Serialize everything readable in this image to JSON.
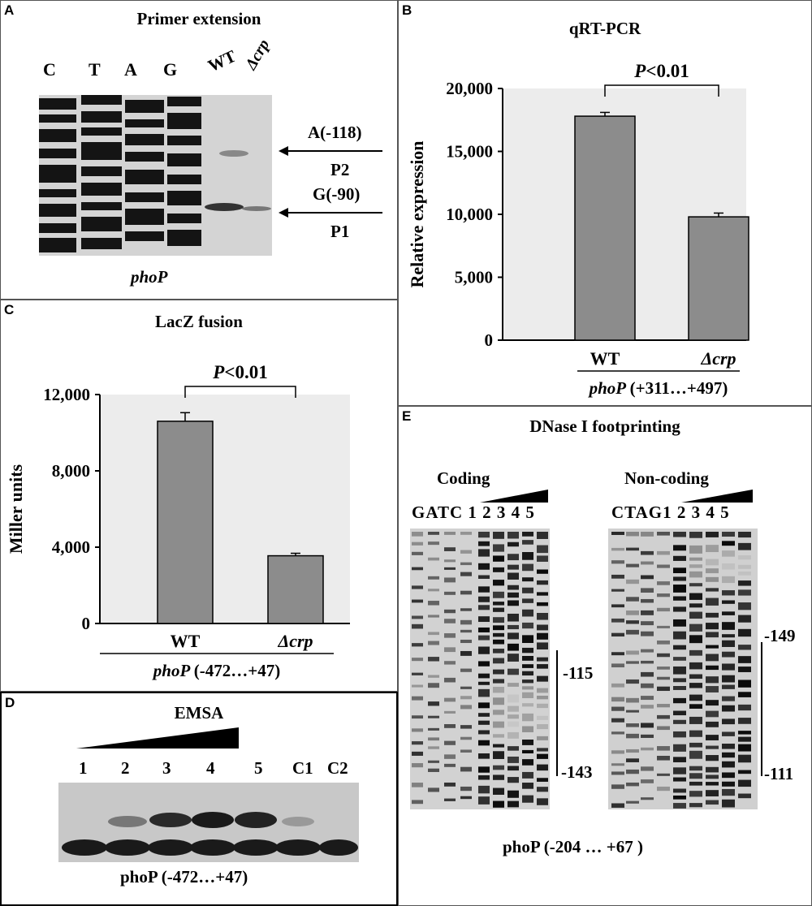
{
  "panelA": {
    "label": "A",
    "title": "Primer extension",
    "lanes": [
      "C",
      "T",
      "A",
      "G",
      "WT",
      "Δcrp"
    ],
    "annotations": [
      {
        "site": "A(-118)",
        "name": "P2"
      },
      {
        "site": "G(-90)",
        "name": "P1"
      }
    ],
    "gene": "phoP"
  },
  "panelB": {
    "label": "B",
    "title": "qRT-PCR",
    "pvalue": "P<0.01",
    "gene_label": "phoP (+311…+497)",
    "chart_data": {
      "type": "bar",
      "title": "qRT-PCR",
      "categories": [
        "WT",
        "Δcrp"
      ],
      "values": [
        17800,
        9800
      ],
      "errors": [
        300,
        300
      ],
      "ylabel": "Relative expression",
      "xlabel": "phoP (+311…+497)",
      "ylim": [
        0,
        20000
      ],
      "yticks": [
        "0",
        "5,000",
        "10,000",
        "15,000",
        "20,000"
      ],
      "annotation": "P<0.01",
      "bar_color": "#8c8c8c"
    }
  },
  "panelC": {
    "label": "C",
    "title": "LacZ fusion",
    "pvalue": "P<0.01",
    "gene_label": "phoP (-472…+47)",
    "chart_data": {
      "type": "bar",
      "title": "LacZ fusion",
      "categories": [
        "WT",
        "Δcrp"
      ],
      "values": [
        10600,
        3550
      ],
      "errors": [
        450,
        130
      ],
      "ylabel": "Miller units",
      "xlabel": "phoP (-472…+47)",
      "ylim": [
        0,
        12000
      ],
      "yticks": [
        "0",
        "4,000",
        "8,000",
        "12,000"
      ],
      "annotation": "P<0.01",
      "bar_color": "#8c8c8c"
    }
  },
  "panelD": {
    "label": "D",
    "title": "EMSA",
    "lanes": [
      "1",
      "2",
      "3",
      "4",
      "5",
      "C1",
      "C2"
    ],
    "gene_label": "phoP (-472…+47)"
  },
  "panelE": {
    "label": "E",
    "title": "DNase I footprinting",
    "coding": {
      "title": "Coding",
      "lanes": [
        "G",
        "A",
        "T",
        "C",
        "1",
        "2",
        "3",
        "4",
        "5"
      ],
      "top": "-115",
      "bottom": "-143"
    },
    "noncoding": {
      "title": "Non-coding",
      "lanes": [
        "C",
        "T",
        "A",
        "G",
        "1",
        "2",
        "3",
        "4",
        "5"
      ],
      "top": "-149",
      "bottom": "-111"
    },
    "gene_label": "phoP (-204 … +67 )"
  }
}
